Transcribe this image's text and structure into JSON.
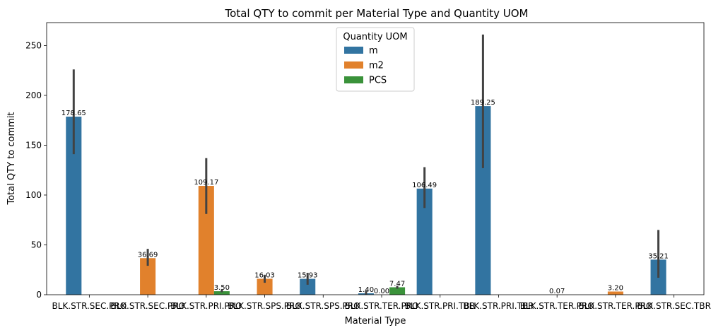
{
  "chart_data": {
    "type": "bar",
    "title": "Total QTY to commit per Material Type and Quantity UOM",
    "xlabel": "Material Type",
    "ylabel": "Total QTY to commit",
    "ylim": [
      0,
      273
    ],
    "yticks": [
      0,
      50,
      100,
      150,
      200,
      250
    ],
    "categories": [
      "BLK.STR.SEC.PRO",
      "BLK.STR.SEC.PRO",
      "BLK.STR.PRI.PRO",
      "BLK.STR.SPS.PRO",
      "BLK.STR.SPS.PRO",
      "BLK.STR.TER.PRO",
      "BLK.STR.PRI.TBR",
      "BLK.STR.PRI.TBR",
      "BLK.STR.TER.PRO",
      "BLK.STR.TER.PRO",
      "BLK.STR.SEC.TBR"
    ],
    "legend": {
      "title": "Quantity UOM",
      "position": "top-center"
    },
    "colors": {
      "m": "#3274a1",
      "m2": "#e1812c",
      "PCS": "#3a923a",
      "errorbar": "#424242"
    },
    "series": [
      {
        "name": "m",
        "values": [
          178.65,
          null,
          null,
          null,
          15.93,
          1.4,
          106.49,
          189.25,
          null,
          null,
          35.21
        ],
        "labels": [
          "178.65",
          null,
          null,
          null,
          "15.93",
          "1.40",
          "106.49",
          "189.25",
          null,
          null,
          "35.21"
        ]
      },
      {
        "name": "m2",
        "values": [
          null,
          36.69,
          109.17,
          16.03,
          null,
          0.0,
          null,
          null,
          0.07,
          3.2,
          null
        ],
        "labels": [
          null,
          "36.69",
          "109.17",
          "16.03",
          null,
          "0.00",
          null,
          null,
          "0.07",
          "3.20",
          null
        ]
      },
      {
        "name": "PCS",
        "values": [
          null,
          null,
          3.5,
          null,
          null,
          7.47,
          null,
          null,
          null,
          null,
          null
        ],
        "labels": [
          null,
          null,
          "3.50",
          null,
          null,
          "7.47",
          null,
          null,
          null,
          null,
          null
        ]
      }
    ],
    "error_bars": [
      {
        "series": "m",
        "category_index": 0,
        "low": 141,
        "high": 226
      },
      {
        "series": "m2",
        "category_index": 1,
        "low": 29,
        "high": 46
      },
      {
        "series": "m2",
        "category_index": 2,
        "low": 81,
        "high": 137
      },
      {
        "series": "PCS",
        "category_index": 2,
        "low": 2.5,
        "high": 5
      },
      {
        "series": "m2",
        "category_index": 3,
        "low": 12,
        "high": 20
      },
      {
        "series": "m",
        "category_index": 4,
        "low": 10,
        "high": 22
      },
      {
        "series": "m",
        "category_index": 5,
        "low": 0.3,
        "high": 4
      },
      {
        "series": "PCS",
        "category_index": 5,
        "low": 6,
        "high": 9
      },
      {
        "series": "m",
        "category_index": 6,
        "low": 87,
        "high": 128
      },
      {
        "series": "m",
        "category_index": 7,
        "low": 127,
        "high": 261
      },
      {
        "series": "m",
        "category_index": 10,
        "low": 17,
        "high": 65
      }
    ]
  }
}
